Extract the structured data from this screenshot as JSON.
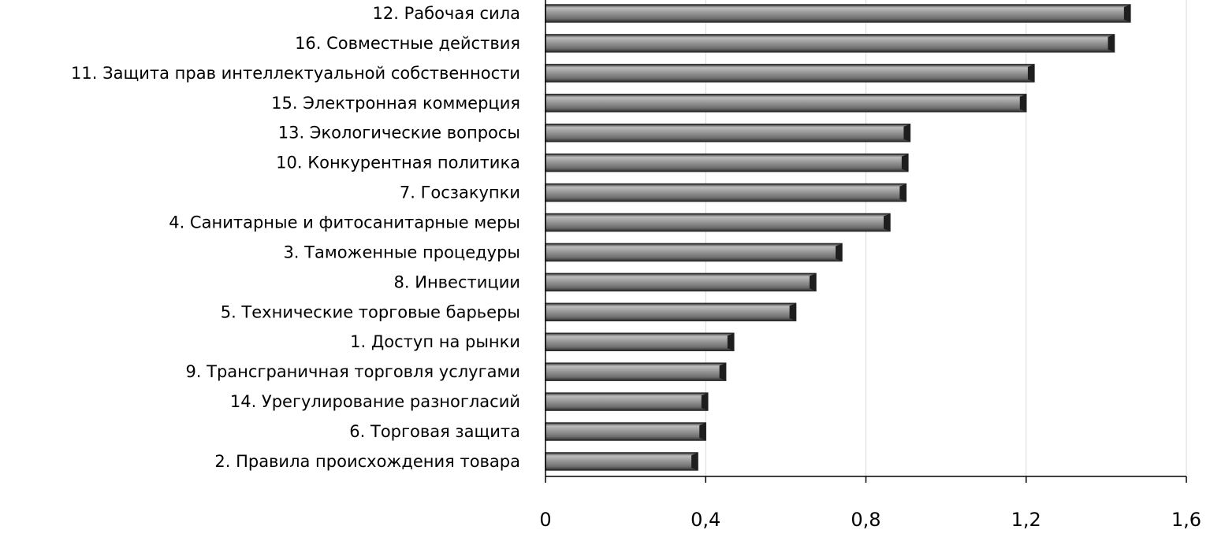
{
  "chart_data": {
    "type": "bar",
    "orientation": "horizontal",
    "categories": [
      "12. Рабочая сила",
      "16. Совместные действия",
      "11. Защита прав интеллектуальной собственности",
      "15. Электронная коммерция",
      "13. Экологические вопросы",
      "10. Конкурентная политика",
      "7. Госзакупки",
      "4. Санитарные и фитосанитарные меры",
      "3. Таможенные процедуры",
      "8. Инвестиции",
      "5. Технические торговые барьеры",
      "1. Доступ на рынки",
      "9. Трансграничная торговля услугами",
      "14. Урегулирование разногласий",
      "6. Торговая защита",
      "2. Правила происхождения товара"
    ],
    "values": [
      1.46,
      1.42,
      1.22,
      1.2,
      0.91,
      0.905,
      0.9,
      0.86,
      0.74,
      0.675,
      0.625,
      0.47,
      0.45,
      0.405,
      0.4,
      0.38
    ],
    "xlim": [
      0,
      1.6
    ],
    "ticks": [
      0,
      0.4,
      0.8,
      1.2,
      1.6
    ],
    "tick_labels": [
      "0",
      "0,4",
      "0,8",
      "1,2",
      "1,6"
    ],
    "title": "",
    "xlabel": "",
    "ylabel": "",
    "grid": "vertical",
    "legend": "none",
    "colors": {
      "bar": "#8e8e8e",
      "bar_edge": "#2a2a2a",
      "grid": "#d9d9d9",
      "axis": "#000000"
    }
  }
}
